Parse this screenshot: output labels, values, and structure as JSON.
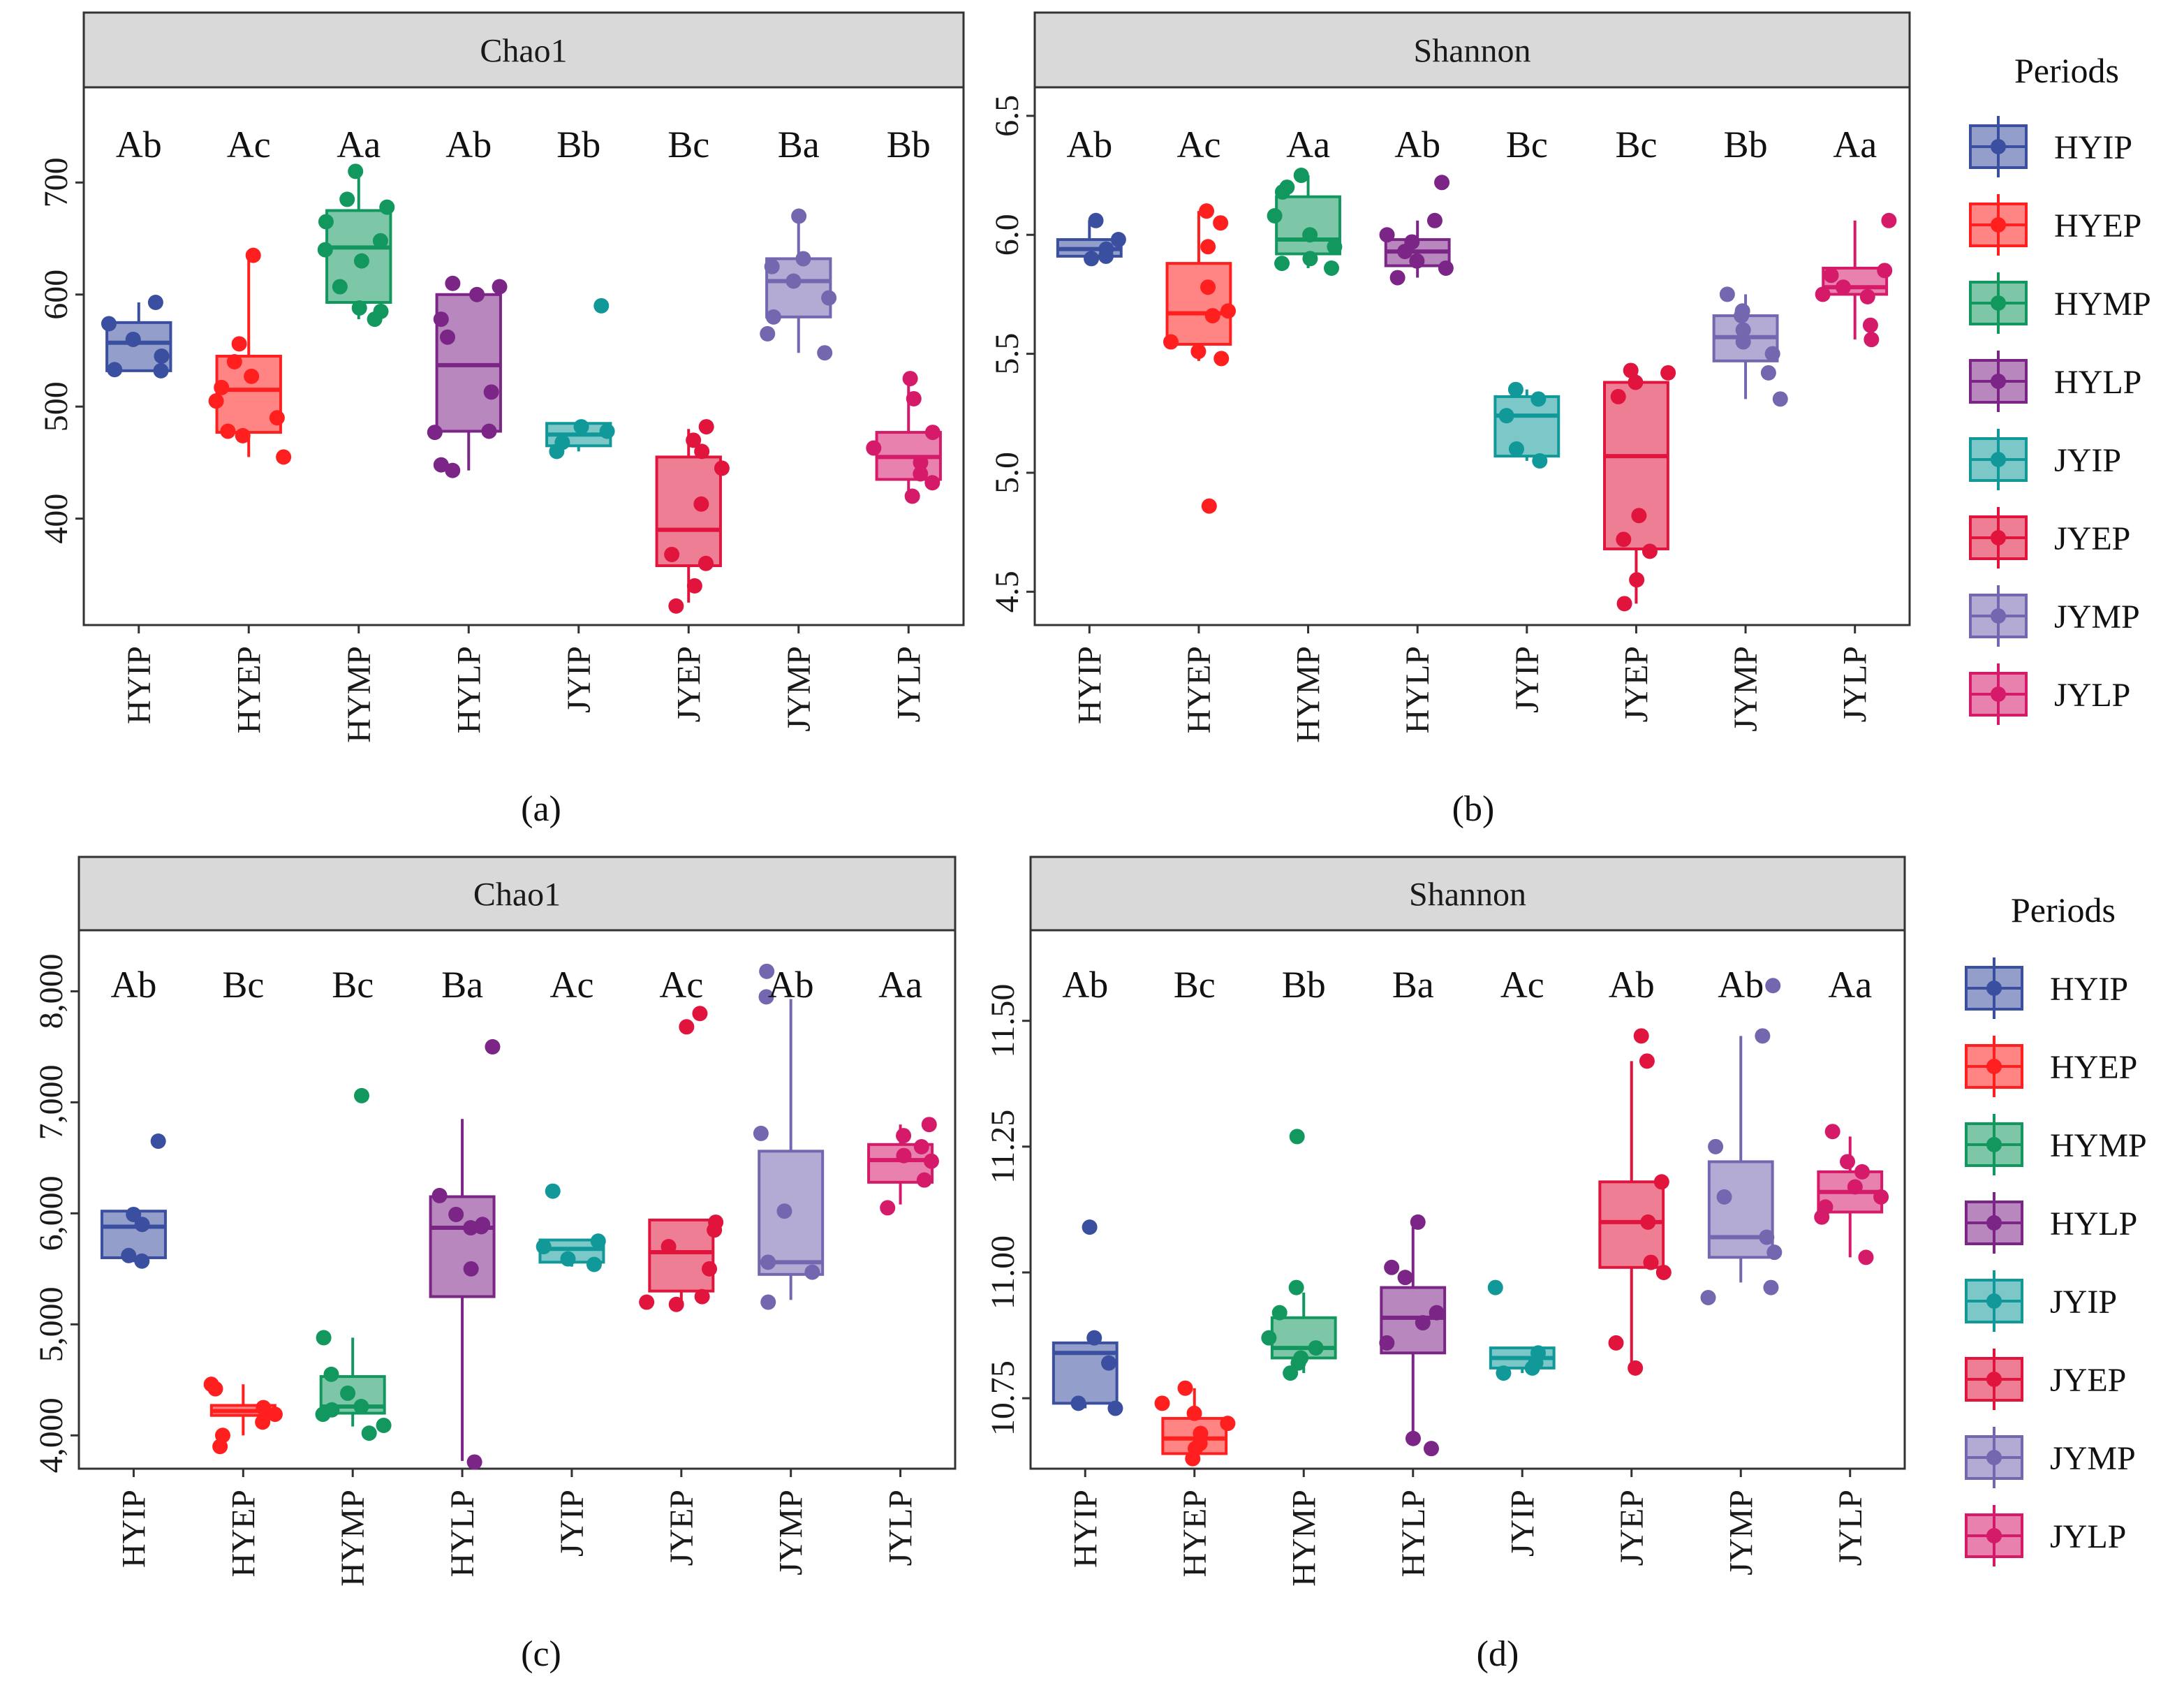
{
  "groups": [
    "HYIP",
    "HYEP",
    "HYMP",
    "HYLP",
    "JYIP",
    "JYEP",
    "JYMP",
    "JYLP"
  ],
  "colors": {
    "HYIP": "#3b4fa0",
    "HYEP": "#ff1f1f",
    "HYMP": "#12985f",
    "HYLP": "#7b2586",
    "JYIP": "#11999a",
    "JYEP": "#e0143c",
    "JYMP": "#7566b0",
    "JYLP": "#d61a6a"
  },
  "legend": {
    "title": "Periods",
    "items": [
      "HYIP",
      "HYEP",
      "HYMP",
      "HYLP",
      "JYIP",
      "JYEP",
      "JYMP",
      "JYLP"
    ]
  },
  "chart_data": [
    {
      "panel": "a",
      "caption": "(a)",
      "type": "box",
      "title": "Chao1",
      "xlabel": "",
      "ylabel": "",
      "ylim": [
        305,
        785
      ],
      "yticks": [
        400,
        500,
        600,
        700
      ],
      "ytick_labels": [
        "400",
        "500",
        "600",
        "700"
      ],
      "categories": [
        "HYIP",
        "HYEP",
        "HYMP",
        "HYLP",
        "JYIP",
        "JYEP",
        "JYMP",
        "JYLP"
      ],
      "sig_letters": [
        "Ab",
        "Ac",
        "Aa",
        "Ab",
        "Bb",
        "Bc",
        "Ba",
        "Bb"
      ],
      "boxes": [
        {
          "q1": 532,
          "median": 557,
          "q3": 575,
          "wlo": 532,
          "whi": 593,
          "points": [
            593,
            574,
            560,
            545,
            533,
            532
          ]
        },
        {
          "q1": 477,
          "median": 515,
          "q3": 545,
          "wlo": 455,
          "whi": 635,
          "points": [
            635,
            556,
            540,
            527,
            517,
            505,
            490,
            478,
            474,
            455
          ]
        },
        {
          "q1": 593,
          "median": 642,
          "q3": 675,
          "wlo": 578,
          "whi": 710,
          "points": [
            710,
            685,
            678,
            665,
            648,
            640,
            630,
            607,
            588,
            585,
            578
          ]
        },
        {
          "q1": 478,
          "median": 537,
          "q3": 600,
          "wlo": 443,
          "whi": 600,
          "points": [
            610,
            607,
            600,
            578,
            562,
            513,
            478,
            477,
            448,
            443
          ]
        },
        {
          "q1": 465,
          "median": 475,
          "q3": 485,
          "wlo": 460,
          "whi": 485,
          "points": [
            590,
            482,
            478,
            468,
            460
          ]
        },
        {
          "q1": 358,
          "median": 390,
          "q3": 455,
          "wlo": 325,
          "whi": 480,
          "points": [
            482,
            470,
            460,
            445,
            413,
            368,
            360,
            340,
            322
          ]
        },
        {
          "q1": 580,
          "median": 612,
          "q3": 632,
          "wlo": 548,
          "whi": 670,
          "points": [
            670,
            632,
            625,
            612,
            597,
            580,
            565,
            548
          ]
        },
        {
          "q1": 435,
          "median": 455,
          "q3": 477,
          "wlo": 420,
          "whi": 525,
          "points": [
            525,
            507,
            477,
            463,
            450,
            440,
            432,
            420
          ]
        }
      ]
    },
    {
      "panel": "b",
      "caption": "(b)",
      "type": "box",
      "title": "Shannon",
      "xlabel": "",
      "ylabel": "",
      "ylim": [
        4.36,
        6.62
      ],
      "yticks": [
        4.5,
        5.0,
        5.5,
        6.0,
        6.5
      ],
      "ytick_labels": [
        "4.5",
        "5.0",
        "5.5",
        "6.0",
        "6.5"
      ],
      "categories": [
        "HYIP",
        "HYEP",
        "HYMP",
        "HYLP",
        "JYIP",
        "JYEP",
        "JYMP",
        "JYLP"
      ],
      "sig_letters": [
        "Ab",
        "Ac",
        "Aa",
        "Ab",
        "Bc",
        "Bc",
        "Bb",
        "Aa"
      ],
      "boxes": [
        {
          "q1": 5.91,
          "median": 5.94,
          "q3": 5.98,
          "wlo": 5.9,
          "whi": 6.06,
          "points": [
            6.06,
            5.98,
            5.94,
            5.91,
            5.9
          ]
        },
        {
          "q1": 5.54,
          "median": 5.67,
          "q3": 5.88,
          "wlo": 5.47,
          "whi": 6.1,
          "points": [
            6.1,
            6.05,
            5.95,
            5.78,
            5.68,
            5.66,
            5.55,
            5.51,
            5.48,
            4.86
          ]
        },
        {
          "q1": 5.92,
          "median": 5.98,
          "q3": 6.16,
          "wlo": 5.86,
          "whi": 6.25,
          "points": [
            6.25,
            6.2,
            6.18,
            6.08,
            6.0,
            5.95,
            5.9,
            5.88,
            5.86
          ]
        },
        {
          "q1": 5.87,
          "median": 5.93,
          "q3": 5.98,
          "wlo": 5.82,
          "whi": 6.06,
          "points": [
            6.22,
            6.06,
            6.0,
            5.97,
            5.93,
            5.89,
            5.86,
            5.82
          ]
        },
        {
          "q1": 5.07,
          "median": 5.24,
          "q3": 5.32,
          "wlo": 5.05,
          "whi": 5.35,
          "points": [
            5.35,
            5.31,
            5.24,
            5.1,
            5.05
          ]
        },
        {
          "q1": 4.68,
          "median": 5.07,
          "q3": 5.38,
          "wlo": 4.45,
          "whi": 5.43,
          "points": [
            5.43,
            5.42,
            5.38,
            5.32,
            4.82,
            4.72,
            4.67,
            4.55,
            4.45
          ]
        },
        {
          "q1": 5.47,
          "median": 5.57,
          "q3": 5.66,
          "wlo": 5.31,
          "whi": 5.75,
          "points": [
            5.75,
            5.68,
            5.66,
            5.6,
            5.55,
            5.5,
            5.42,
            5.31
          ]
        },
        {
          "q1": 5.75,
          "median": 5.78,
          "q3": 5.86,
          "wlo": 5.56,
          "whi": 6.06,
          "points": [
            6.06,
            5.85,
            5.83,
            5.78,
            5.75,
            5.74,
            5.62,
            5.56
          ]
        }
      ]
    },
    {
      "panel": "c",
      "caption": "(c)",
      "type": "box",
      "title": "Chao1",
      "xlabel": "",
      "ylabel": "",
      "ylim": [
        3700,
        8550
      ],
      "yticks": [
        4000,
        5000,
        6000,
        7000,
        8000
      ],
      "ytick_labels": [
        "4,000",
        "5,000",
        "6,000",
        "7,000",
        "8,000"
      ],
      "categories": [
        "HYIP",
        "HYEP",
        "HYMP",
        "HYLP",
        "JYIP",
        "JYEP",
        "JYMP",
        "JYLP"
      ],
      "sig_letters": [
        "Ab",
        "Bc",
        "Bc",
        "Ba",
        "Ac",
        "Ac",
        "Ab",
        "Aa"
      ],
      "boxes": [
        {
          "q1": 5600,
          "median": 5880,
          "q3": 6020,
          "wlo": 5560,
          "whi": 6020,
          "points": [
            6650,
            5990,
            5900,
            5620,
            5570
          ]
        },
        {
          "q1": 4180,
          "median": 4220,
          "q3": 4270,
          "wlo": 4000,
          "whi": 4460,
          "points": [
            4460,
            4420,
            4250,
            4190,
            4120,
            4000,
            3900
          ]
        },
        {
          "q1": 4200,
          "median": 4260,
          "q3": 4530,
          "wlo": 4080,
          "whi": 4880,
          "points": [
            7060,
            4880,
            4550,
            4380,
            4260,
            4230,
            4190,
            4090,
            4020
          ]
        },
        {
          "q1": 5250,
          "median": 5870,
          "q3": 6150,
          "wlo": 3770,
          "whi": 6850,
          "points": [
            7500,
            5990,
            6160,
            5900,
            5880,
            5870,
            5500,
            3760
          ]
        },
        {
          "q1": 5560,
          "median": 5680,
          "q3": 5760,
          "wlo": 5520,
          "whi": 5760,
          "points": [
            6200,
            5750,
            5700,
            5590,
            5540
          ]
        },
        {
          "q1": 5300,
          "median": 5650,
          "q3": 5940,
          "wlo": 5200,
          "whi": 5940,
          "points": [
            7800,
            7680,
            5920,
            5850,
            5700,
            5500,
            5250,
            5200,
            5180
          ]
        },
        {
          "q1": 5450,
          "median": 5560,
          "q3": 6560,
          "wlo": 5220,
          "whi": 7930,
          "points": [
            8180,
            7950,
            6720,
            6020,
            5560,
            5470,
            5200
          ]
        },
        {
          "q1": 6280,
          "median": 6480,
          "q3": 6620,
          "wlo": 6080,
          "whi": 6800,
          "points": [
            6800,
            6700,
            6600,
            6520,
            6470,
            6300,
            6050
          ]
        }
      ]
    },
    {
      "panel": "d",
      "caption": "(d)",
      "type": "box",
      "title": "Shannon",
      "xlabel": "",
      "ylabel": "",
      "ylim": [
        10.61,
        11.68
      ],
      "yticks": [
        10.75,
        11.0,
        11.25,
        11.5
      ],
      "ytick_labels": [
        "10.75",
        "11.00",
        "11.25",
        "11.50"
      ],
      "categories": [
        "HYIP",
        "HYEP",
        "HYMP",
        "HYLP",
        "JYIP",
        "JYEP",
        "JYMP",
        "JYLP"
      ],
      "sig_letters": [
        "Ab",
        "Bc",
        "Bb",
        "Ba",
        "Ac",
        "Ab",
        "Ab",
        "Aa"
      ],
      "boxes": [
        {
          "q1": 10.74,
          "median": 10.84,
          "q3": 10.86,
          "wlo": 10.73,
          "whi": 10.86,
          "points": [
            11.09,
            10.87,
            10.82,
            10.74,
            10.73
          ]
        },
        {
          "q1": 10.64,
          "median": 10.67,
          "q3": 10.71,
          "wlo": 10.63,
          "whi": 10.77,
          "points": [
            10.77,
            10.74,
            10.72,
            10.7,
            10.68,
            10.66,
            10.65,
            10.63
          ]
        },
        {
          "q1": 10.83,
          "median": 10.85,
          "q3": 10.91,
          "wlo": 10.8,
          "whi": 10.96,
          "points": [
            11.27,
            10.97,
            10.92,
            10.87,
            10.85,
            10.83,
            10.82,
            10.8
          ]
        },
        {
          "q1": 10.84,
          "median": 10.91,
          "q3": 10.97,
          "wlo": 10.66,
          "whi": 11.09,
          "points": [
            11.1,
            11.01,
            10.99,
            10.92,
            10.9,
            10.86,
            10.67,
            10.65
          ]
        },
        {
          "q1": 10.81,
          "median": 10.83,
          "q3": 10.85,
          "wlo": 10.8,
          "whi": 10.85,
          "points": [
            10.97,
            10.84,
            10.82,
            10.81,
            10.8
          ]
        },
        {
          "q1": 11.01,
          "median": 11.1,
          "q3": 11.18,
          "wlo": 10.82,
          "whi": 11.42,
          "points": [
            11.47,
            11.42,
            11.18,
            11.1,
            11.02,
            11.0,
            10.86,
            10.81
          ]
        },
        {
          "q1": 11.03,
          "median": 11.07,
          "q3": 11.22,
          "wlo": 10.98,
          "whi": 11.47,
          "points": [
            11.57,
            11.47,
            11.25,
            11.15,
            11.07,
            11.04,
            10.97,
            10.95
          ]
        },
        {
          "q1": 11.12,
          "median": 11.16,
          "q3": 11.2,
          "wlo": 11.03,
          "whi": 11.27,
          "points": [
            11.28,
            11.22,
            11.2,
            11.17,
            11.15,
            11.13,
            11.11,
            11.03
          ]
        }
      ]
    }
  ]
}
